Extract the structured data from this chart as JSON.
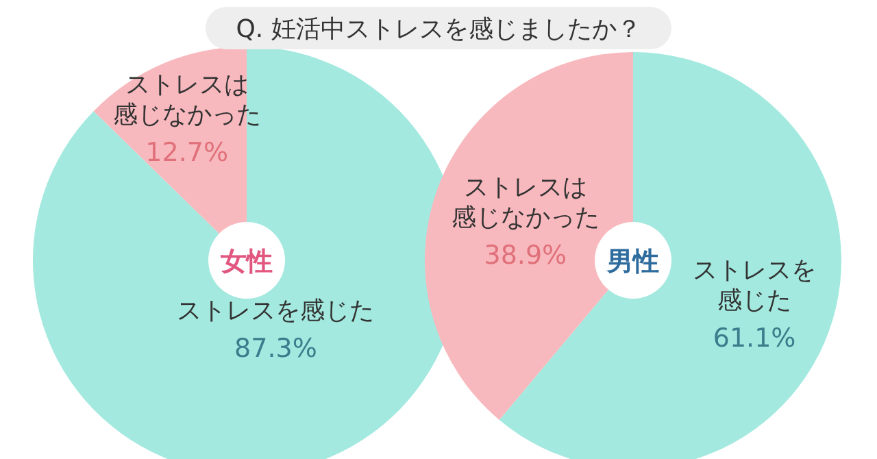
{
  "chart_data": [
    {
      "type": "pie",
      "title": "Q. 妊活中ストレスを感じましたか？",
      "subtitle": "女性",
      "categories": [
        "ストレスを感じた",
        "ストレスは感じなかった"
      ],
      "values": [
        87.3,
        12.7
      ],
      "colors": [
        "#a3e9df",
        "#f8b9be"
      ],
      "value_labels": [
        "87.3%",
        "12.7%"
      ]
    },
    {
      "type": "pie",
      "subtitle": "男性",
      "categories": [
        "ストレスを感じた",
        "ストレスは感じなかった"
      ],
      "values": [
        61.1,
        38.9
      ],
      "colors": [
        "#a3e9df",
        "#f8b9be"
      ],
      "value_labels": [
        "61.1%",
        "38.9%"
      ]
    }
  ]
}
